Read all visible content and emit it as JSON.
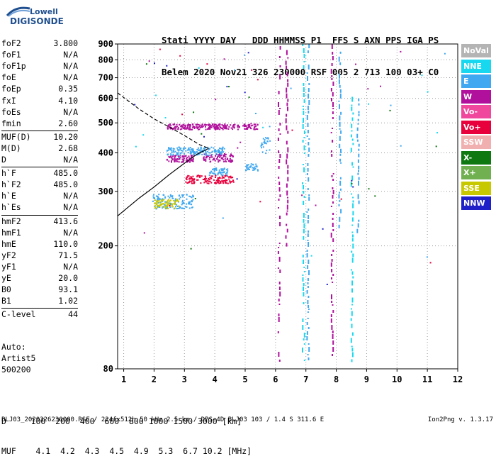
{
  "logo": {
    "line1": "Lowell",
    "line2": "DIGISONDE"
  },
  "header": {
    "labels": "Stati YYYY DAY   DDD HHMMSS P1  FFS S AXN PPS IGA PS",
    "values": "Belem 2020 Nov21 326 230000 RSF 005 2 713 100 03+ C0"
  },
  "params": [
    {
      "name": "foF2",
      "value": "3.800"
    },
    {
      "name": "foF1",
      "value": "N/A"
    },
    {
      "name": "foF1p",
      "value": "N/A"
    },
    {
      "name": "foE",
      "value": "N/A"
    },
    {
      "name": "foEp",
      "value": "0.35"
    },
    {
      "name": "fxI",
      "value": "4.10"
    },
    {
      "name": "foEs",
      "value": "N/A"
    },
    {
      "name": "fmin",
      "value": "2.60"
    },
    {
      "name": "MUF(D)",
      "value": "10.20"
    },
    {
      "name": "M(D)",
      "value": "2.68"
    },
    {
      "name": "D",
      "value": "N/A"
    },
    {
      "name": "h`F",
      "value": "485.0"
    },
    {
      "name": "h`F2",
      "value": "485.0"
    },
    {
      "name": "h`E",
      "value": "N/A"
    },
    {
      "name": "h`Es",
      "value": "N/A"
    },
    {
      "name": "hmF2",
      "value": "413.6"
    },
    {
      "name": "hmF1",
      "value": "N/A"
    },
    {
      "name": "hmE",
      "value": "110.0"
    },
    {
      "name": "yF2",
      "value": "71.5"
    },
    {
      "name": "yF1",
      "value": "N/A"
    },
    {
      "name": "yE",
      "value": "20.0"
    },
    {
      "name": "B0",
      "value": "93.1"
    },
    {
      "name": "B1",
      "value": "1.02"
    },
    {
      "name": "C-level",
      "value": "44"
    }
  ],
  "auto": {
    "line1": "Auto:",
    "line2": "Artist5",
    "line3": "500200"
  },
  "ruler": {
    "d_line": "D     100  200  400  600  800 1000 1500 3000 [km]",
    "muf_line": "MUF    4.1  4.2  4.3  4.5  4.9  5.3  6.7 10.2 [MHz]"
  },
  "footer": {
    "left": "BLJ03_2020326230000.RSF / 224fx512h 50 kHz 2.5 km / DPS-4D BLJ03 103 / 1.4 S 311.6 E",
    "right": "Ion2Png v. 1.3.17"
  },
  "legend": [
    {
      "label": "NoVal",
      "color": "#b4b4b4"
    },
    {
      "label": "NNE",
      "color": "#18d8f0"
    },
    {
      "label": "E",
      "color": "#40a8f0"
    },
    {
      "label": "W",
      "color": "#b0109c"
    },
    {
      "label": "Vo-",
      "color": "#f0489c"
    },
    {
      "label": "Vo+",
      "color": "#e8003c"
    },
    {
      "label": "SSW",
      "color": "#f0b0b0"
    },
    {
      "label": "X-",
      "color": "#107810"
    },
    {
      "label": "X+",
      "color": "#70b050"
    },
    {
      "label": "SSE",
      "color": "#c8c800"
    },
    {
      "label": "NNW",
      "color": "#2020c8"
    }
  ],
  "chart_data": {
    "type": "scatter",
    "xlim": [
      0.8,
      12.0
    ],
    "ylim": [
      80,
      900
    ],
    "y_scale": "log",
    "x_ticks": [
      1,
      2,
      3,
      4,
      5,
      6,
      7,
      8,
      9,
      10,
      11,
      12
    ],
    "y_ticks": [
      80,
      200,
      300,
      400,
      500,
      600,
      700,
      800,
      900
    ],
    "grid": true,
    "legend_placement": "right",
    "echo_clusters": [
      {
        "freq": [
          2.4,
          4.8
        ],
        "height": [
          478,
          498
        ],
        "color": "#b0109c"
      },
      {
        "freq": [
          2.4,
          3.3
        ],
        "height": [
          375,
          395
        ],
        "color": "#b0109c"
      },
      {
        "freq": [
          3.6,
          4.6
        ],
        "height": [
          375,
          400
        ],
        "color": "#b0109c"
      },
      {
        "freq": [
          2.4,
          4.3
        ],
        "height": [
          395,
          420
        ],
        "color": "#40a8f0"
      },
      {
        "freq": [
          3.0,
          4.6
        ],
        "height": [
          320,
          340
        ],
        "color": "#e8003c"
      },
      {
        "freq": [
          3.8,
          4.4
        ],
        "height": [
          340,
          360
        ],
        "color": "#40a8f0"
      },
      {
        "freq": [
          1.9,
          3.3
        ],
        "height": [
          265,
          295
        ],
        "color": "#40a8f0"
      },
      {
        "freq": [
          2.0,
          2.8
        ],
        "height": [
          265,
          285
        ],
        "color": "#c8c800"
      },
      {
        "freq": [
          5.0,
          5.4
        ],
        "height": [
          350,
          370
        ],
        "color": "#40a8f0"
      },
      {
        "freq": [
          4.9,
          5.4
        ],
        "height": [
          478,
          500
        ],
        "color": "#b0109c"
      },
      {
        "freq": [
          5.5,
          5.8
        ],
        "height": [
          400,
          450
        ],
        "color": "#40a8f0"
      }
    ],
    "vertical_traces": [
      {
        "freq": 6.1,
        "height": [
          82,
          900
        ],
        "color": "#b0109c"
      },
      {
        "freq": 6.35,
        "height": [
          200,
          860
        ],
        "color": "#b0109c"
      },
      {
        "freq": 6.9,
        "height": [
          85,
          900
        ],
        "color": "#18d8f0"
      },
      {
        "freq": 7.05,
        "height": [
          85,
          900
        ],
        "color": "#40a8f0"
      },
      {
        "freq": 7.85,
        "height": [
          85,
          900
        ],
        "color": "#b0109c"
      },
      {
        "freq": 8.1,
        "height": [
          230,
          850
        ],
        "color": "#40a8f0"
      },
      {
        "freq": 8.5,
        "height": [
          85,
          620
        ],
        "color": "#18d8f0"
      },
      {
        "freq": 8.7,
        "height": [
          220,
          600
        ],
        "color": "#40a8f0"
      }
    ],
    "profile_curve": [
      [
        0.8,
        250
      ],
      [
        1.5,
        285
      ],
      [
        2.0,
        310
      ],
      [
        2.5,
        340
      ],
      [
        3.0,
        370
      ],
      [
        3.4,
        395
      ],
      [
        3.8,
        413.6
      ]
    ],
    "profile_dashed": [
      [
        0.8,
        625
      ],
      [
        1.5,
        555
      ],
      [
        2.0,
        515
      ],
      [
        2.5,
        485
      ],
      [
        3.0,
        455
      ],
      [
        3.5,
        425
      ],
      [
        3.8,
        413.6
      ]
    ]
  }
}
